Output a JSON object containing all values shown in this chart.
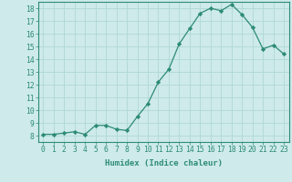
{
  "x": [
    0,
    1,
    2,
    3,
    4,
    5,
    6,
    7,
    8,
    9,
    10,
    11,
    12,
    13,
    14,
    15,
    16,
    17,
    18,
    19,
    20,
    21,
    22,
    23
  ],
  "y": [
    8.1,
    8.1,
    8.2,
    8.3,
    8.1,
    8.8,
    8.8,
    8.5,
    8.4,
    9.5,
    10.5,
    12.2,
    13.2,
    15.2,
    16.4,
    17.6,
    18.0,
    17.8,
    18.3,
    17.5,
    16.5,
    14.8,
    15.1,
    14.4
  ],
  "line_color": "#2d8b78",
  "marker": "D",
  "marker_size": 2.2,
  "bg_color": "#ceeaea",
  "grid_color": "#b0d8d8",
  "xlabel": "Humidex (Indice chaleur)",
  "xlim": [
    -0.5,
    23.5
  ],
  "ylim": [
    7.5,
    18.5
  ],
  "yticks": [
    8,
    9,
    10,
    11,
    12,
    13,
    14,
    15,
    16,
    17,
    18
  ],
  "xticks": [
    0,
    1,
    2,
    3,
    4,
    5,
    6,
    7,
    8,
    9,
    10,
    11,
    12,
    13,
    14,
    15,
    16,
    17,
    18,
    19,
    20,
    21,
    22,
    23
  ],
  "tick_color": "#2d8b78",
  "axis_color": "#2d8b78",
  "label_fontsize": 6.5,
  "tick_fontsize": 5.8
}
